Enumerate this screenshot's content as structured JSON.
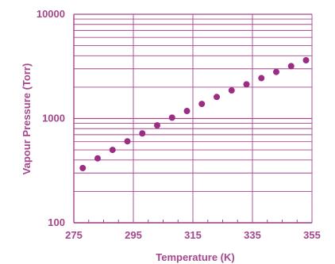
{
  "chart_data": {
    "type": "scatter",
    "title": "",
    "xlabel": "Temperature (K)",
    "ylabel": "Vapour Pressure (Torr)",
    "xlim": [
      275,
      355
    ],
    "ylim": [
      100,
      10000
    ],
    "y_scale": "log",
    "grid": true,
    "x_ticks": [
      "275",
      "295",
      "315",
      "335",
      "355"
    ],
    "y_ticks": [
      "100",
      "1000",
      "10000"
    ],
    "colors": {
      "marker": "#9b2d84",
      "axis": "#a4478d",
      "grid": "#a4478d"
    },
    "series": [
      {
        "x": [
          278,
          283,
          288,
          293,
          298,
          303,
          308,
          313,
          318,
          323,
          328,
          333,
          338,
          343,
          348,
          353
        ],
        "y": [
          335,
          415,
          500,
          605,
          720,
          860,
          1020,
          1180,
          1380,
          1610,
          1860,
          2130,
          2440,
          2800,
          3180,
          3620
        ]
      }
    ]
  }
}
